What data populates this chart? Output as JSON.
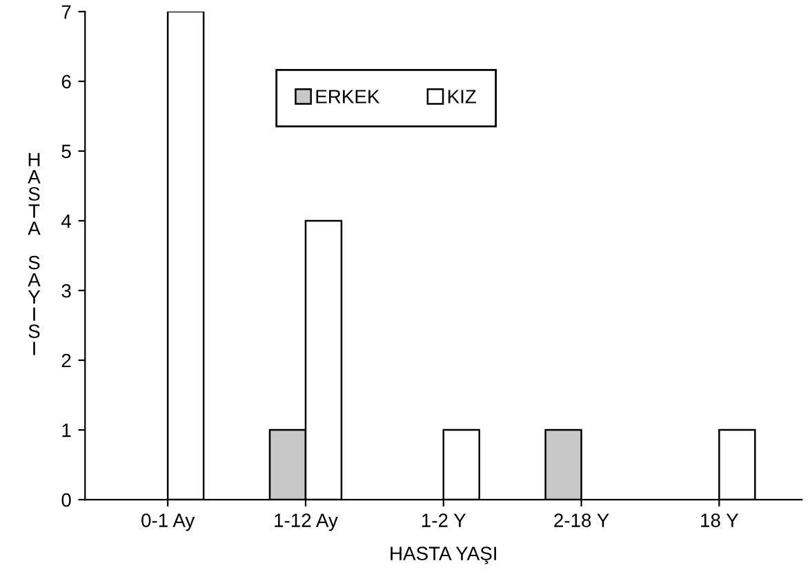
{
  "chart_data": {
    "type": "bar",
    "xlabel": "HASTA YAŞI",
    "ylabel": "HASTA SAYISI",
    "categories": [
      "0-1 Ay",
      "1-12 Ay",
      "1-2 Y",
      "2-18 Y",
      "18 Y"
    ],
    "series": [
      {
        "name": "ERKEK",
        "color": "#c8c8c8",
        "values": [
          0,
          1,
          0,
          1,
          0
        ]
      },
      {
        "name": "KIZ",
        "color": "#ffffff",
        "values": [
          7,
          4,
          1,
          0,
          1
        ]
      }
    ],
    "ylim": [
      0,
      7
    ],
    "yticks": [
      0,
      1,
      2,
      3,
      4,
      5,
      6,
      7
    ],
    "grid": false,
    "legend": "top"
  }
}
